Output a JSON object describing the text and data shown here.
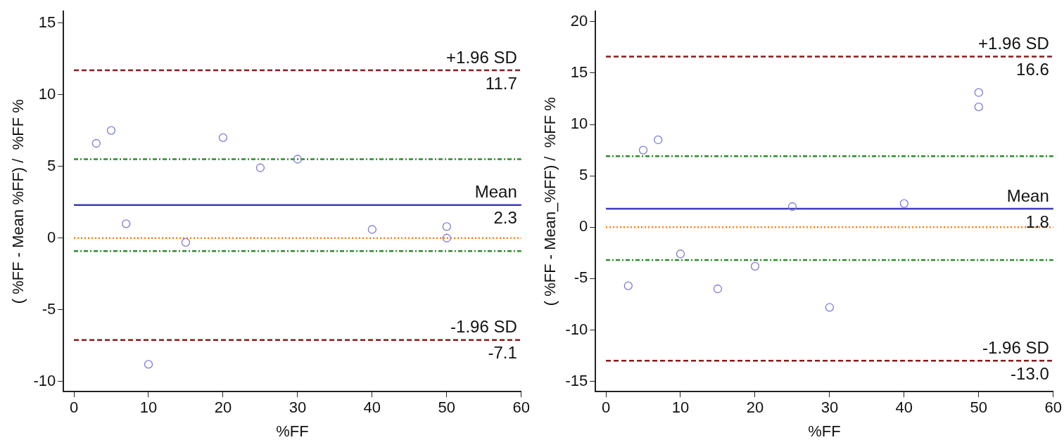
{
  "chart_data": [
    {
      "type": "scatter",
      "xlabel": "%FF",
      "ylabel": "( %FF - Mean %FF) /  %FF %",
      "xlim": [
        -1.4,
        60
      ],
      "ylim": [
        -10.7,
        15.8
      ],
      "xticks": [
        0,
        10,
        20,
        30,
        40,
        50,
        60
      ],
      "yticks": [
        -10,
        -5,
        0,
        5,
        10,
        15
      ],
      "grid": false,
      "legend": false,
      "marker": "circle",
      "series": [
        {
          "color": "#7b7bd6",
          "x": [
            3,
            5,
            7,
            10,
            15,
            20,
            25,
            30,
            40,
            50,
            50
          ],
          "values": [
            6.6,
            7.5,
            1.0,
            -8.8,
            -0.3,
            7.0,
            4.9,
            5.5,
            0.6,
            0.8,
            0.0
          ]
        }
      ],
      "ref_lines": [
        {
          "axis": "y",
          "value": 11.7,
          "label": "+1.96 SD",
          "color": "#8b1a1a",
          "line_style": "dashed"
        },
        {
          "axis": "y",
          "value": 2.3,
          "label": "Mean",
          "color": "#3c3cb4",
          "line_style": "solid"
        },
        {
          "axis": "y",
          "value": -7.1,
          "label": "-1.96 SD",
          "color": "#8b1a1a",
          "line_style": "dashed"
        },
        {
          "axis": "y",
          "value": 5.5,
          "color": "#2e8b2e",
          "line_style": "dashdot"
        },
        {
          "axis": "y",
          "value": 0,
          "color": "#ff7f0e",
          "line_style": "dotted"
        },
        {
          "axis": "y",
          "value": -0.9,
          "color": "#2e8b2e",
          "line_style": "dashdot"
        }
      ],
      "annotations": [
        {
          "text": "11.7",
          "y": 11.7
        },
        {
          "text": "2.3",
          "y": 2.3
        },
        {
          "text": "-7.1",
          "y": -7.1
        }
      ]
    },
    {
      "type": "scatter",
      "xlabel": "%FF",
      "ylabel": "( %FF - Mean_%FF) /  %FF %",
      "xlim": [
        -1.4,
        60
      ],
      "ylim": [
        -16,
        21
      ],
      "xticks": [
        0,
        10,
        20,
        30,
        40,
        50,
        60
      ],
      "yticks": [
        -15,
        -10,
        -5,
        0,
        5,
        10,
        15,
        20
      ],
      "grid": false,
      "legend": false,
      "marker": "circle",
      "series": [
        {
          "color": "#7b7bd6",
          "x": [
            3,
            5,
            7,
            10,
            15,
            20,
            25,
            30,
            40,
            50,
            50
          ],
          "values": [
            -5.7,
            7.5,
            8.5,
            -2.6,
            -6.0,
            -3.8,
            2.0,
            -7.8,
            2.3,
            13.1,
            11.7
          ]
        }
      ],
      "ref_lines": [
        {
          "axis": "y",
          "value": 16.6,
          "label": "+1.96 SD",
          "color": "#8b1a1a",
          "line_style": "dashed"
        },
        {
          "axis": "y",
          "value": 1.8,
          "label": "Mean",
          "color": "#3c3cb4",
          "line_style": "solid"
        },
        {
          "axis": "y",
          "value": -13.0,
          "label": "-1.96 SD",
          "color": "#8b1a1a",
          "line_style": "dashed"
        },
        {
          "axis": "y",
          "value": 6.9,
          "color": "#2e8b2e",
          "line_style": "dashdot"
        },
        {
          "axis": "y",
          "value": 0,
          "color": "#ff7f0e",
          "line_style": "dotted"
        },
        {
          "axis": "y",
          "value": -3.2,
          "color": "#2e8b2e",
          "line_style": "dashdot"
        }
      ],
      "annotations": [
        {
          "text": "16.6",
          "y": 16.6
        },
        {
          "text": "1.8",
          "y": 1.8
        },
        {
          "text": "-13.0",
          "y": -13.0
        }
      ]
    }
  ]
}
